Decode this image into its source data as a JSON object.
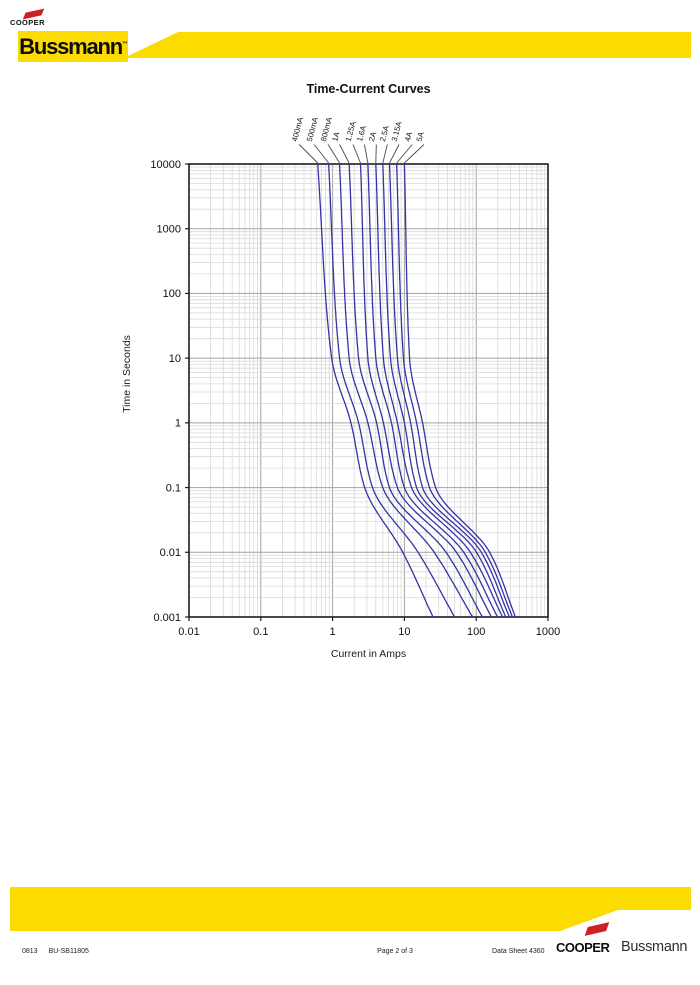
{
  "brand": {
    "cooper": "COOPER",
    "bussmann": "Bussmann",
    "trademark": "™"
  },
  "colors": {
    "yellow": "#FBDB00",
    "red": "#CE2127",
    "curve_blue": "#3434A4",
    "grid_minor": "#D9D9D9",
    "grid_major": "#A3A3A3",
    "frame": "#1C1C1C"
  },
  "chart_data": {
    "type": "line",
    "title": "Time-Current Curves",
    "xlabel": "Current in Amps",
    "ylabel": "Time in Seconds",
    "x_scale": "log",
    "y_scale": "log",
    "xlim": [
      0.01,
      1000
    ],
    "ylim": [
      0.001,
      10000
    ],
    "x_ticks": [
      "0.01",
      "0.1",
      "1",
      "10",
      "100",
      "1000"
    ],
    "y_ticks": [
      "10000",
      "1000",
      "100",
      "10",
      "1",
      "0.1",
      "0.01",
      "0.001"
    ],
    "grid": "log decade + minor gridlines on",
    "legend_position": "rotated rating labels above plot with leader lines to each curve",
    "sample_times_s": [
      10000,
      10,
      1,
      0.1,
      0.01,
      0.001
    ],
    "series": [
      {
        "name": "400mA",
        "amps_at_sample_times": [
          0.62,
          0.97,
          1.8,
          2.8,
          9.5,
          25
        ]
      },
      {
        "name": "500mA",
        "amps_at_sample_times": [
          0.88,
          1.25,
          2.3,
          3.6,
          15.5,
          50
        ]
      },
      {
        "name": "800mA",
        "amps_at_sample_times": [
          1.25,
          1.7,
          3.1,
          5.0,
          26,
          89
        ]
      },
      {
        "name": "1A",
        "amps_at_sample_times": [
          1.7,
          2.3,
          4.1,
          6.2,
          38,
          122
        ]
      },
      {
        "name": "1.25A",
        "amps_at_sample_times": [
          2.45,
          3.1,
          5.1,
          8.0,
          53,
          163
        ]
      },
      {
        "name": "1.6A",
        "amps_at_sample_times": [
          3.1,
          4.0,
          6.6,
          10,
          67,
          198
        ]
      },
      {
        "name": "2A",
        "amps_at_sample_times": [
          4.0,
          5.1,
          8.0,
          12.6,
          83,
          233
        ]
      },
      {
        "name": "2.5A",
        "amps_at_sample_times": [
          5.0,
          6.4,
          10,
          14.8,
          101,
          258
        ]
      },
      {
        "name": "3.15A",
        "amps_at_sample_times": [
          6.2,
          8.0,
          12.2,
          17.9,
          118,
          290
        ]
      },
      {
        "name": "4A",
        "amps_at_sample_times": [
          7.8,
          9.7,
          14.8,
          22.4,
          134,
          320
        ]
      },
      {
        "name": "5A",
        "amps_at_sample_times": [
          10,
          11.8,
          17.9,
          27.2,
          154,
          352
        ]
      }
    ]
  },
  "footer": {
    "rev_code": "0813",
    "doc_code": "BU-SB11805",
    "page_label": "Page 2 of 3",
    "sheet_label": "Data Sheet 4360"
  }
}
